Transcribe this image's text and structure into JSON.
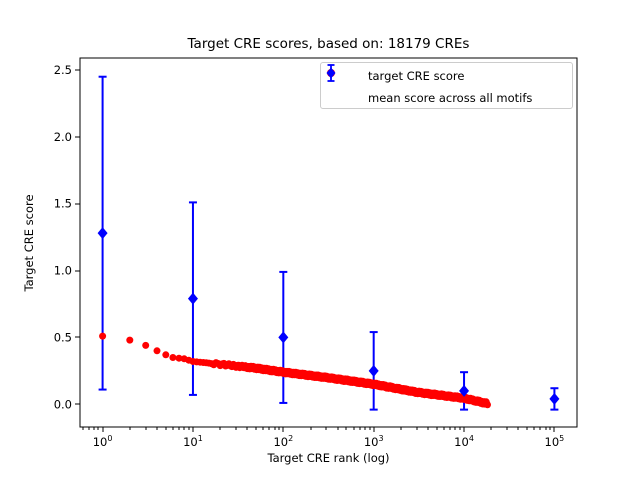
{
  "chart_data": {
    "type": "scatter",
    "title": "Target CRE scores, based on: 18179 CREs",
    "xlabel": "Target CRE rank (log)",
    "ylabel": "Target CRE score",
    "x_scale": "log",
    "grid": false,
    "xlim_log10": [
      -0.25,
      5.25
    ],
    "ylim": [
      -0.17,
      2.59
    ],
    "x_tick_exponents": [
      0,
      1,
      2,
      3,
      4,
      5
    ],
    "x_tick_base": "10",
    "y_ticks": {
      "values": [
        0.0,
        0.5,
        1.0,
        1.5,
        2.0,
        2.5
      ],
      "labels": [
        "0.0",
        "0.5",
        "1.0",
        "1.5",
        "2.0",
        "2.5"
      ]
    },
    "colors": {
      "target_series": "#ff0000",
      "mean_series": "#0000ff",
      "axis": "#000000",
      "legend_border": "#cccccc"
    },
    "legend": {
      "position": "upper right",
      "items": [
        {
          "label": "target CRE score",
          "marker": "circle",
          "color": "#ff0000"
        },
        {
          "label": "mean score across all motifs",
          "marker": "diamond-errorbar",
          "color": "#0000ff"
        }
      ]
    },
    "series": [
      {
        "name": "target CRE score",
        "marker": "circle",
        "color": "#ff0000",
        "rank_range": [
          1,
          18179
        ],
        "n_points": 18179,
        "curve_anchors": [
          [
            1,
            0.51
          ],
          [
            2,
            0.48
          ],
          [
            3,
            0.44
          ],
          [
            4,
            0.4
          ],
          [
            5,
            0.37
          ],
          [
            6,
            0.35
          ],
          [
            8,
            0.34
          ],
          [
            10,
            0.32
          ],
          [
            20,
            0.3
          ],
          [
            50,
            0.27
          ],
          [
            100,
            0.24
          ],
          [
            300,
            0.2
          ],
          [
            1000,
            0.15
          ],
          [
            3000,
            0.09
          ],
          [
            10000,
            0.045
          ],
          [
            18179,
            0.005
          ]
        ]
      },
      {
        "name": "mean score across all motifs",
        "marker": "diamond",
        "color": "#0000ff",
        "error_caps": true,
        "points": [
          {
            "rank": 1,
            "mean": 1.28,
            "err": 1.17
          },
          {
            "rank": 10,
            "mean": 0.79,
            "err": 0.72
          },
          {
            "rank": 100,
            "mean": 0.5,
            "err": 0.49
          },
          {
            "rank": 1000,
            "mean": 0.25,
            "err": 0.29
          },
          {
            "rank": 10000,
            "mean": 0.1,
            "err": 0.14
          },
          {
            "rank": 100000,
            "mean": 0.04,
            "err": 0.08
          }
        ]
      }
    ]
  }
}
